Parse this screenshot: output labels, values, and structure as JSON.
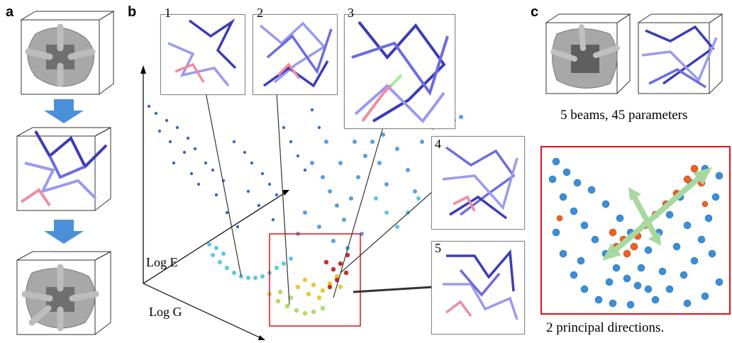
{
  "panels": {
    "a": {
      "letter": "a"
    },
    "b": {
      "letter": "b",
      "insets": [
        "1",
        "2",
        "3",
        "4",
        "5"
      ],
      "axes": {
        "x": "Log E",
        "y": "Log G"
      }
    },
    "c": {
      "letter": "c",
      "caption_top": "5 beams, 45 parameters",
      "caption_bottom": "2 principal directions."
    }
  },
  "colors": {
    "beam_light": "#9a9af0",
    "beam_dark": "#3b3bb8",
    "beam_highlight": "#f08ca0",
    "solid_gray": "#9a9a9a",
    "arrow_blue": "#4a90d9",
    "accent_red": "#e0101a",
    "dot_blue": "#3a8fd9",
    "dot_orange": "#f06020",
    "dot_green": "#a8d85a",
    "principal_arrow": "#a8d8a0"
  }
}
